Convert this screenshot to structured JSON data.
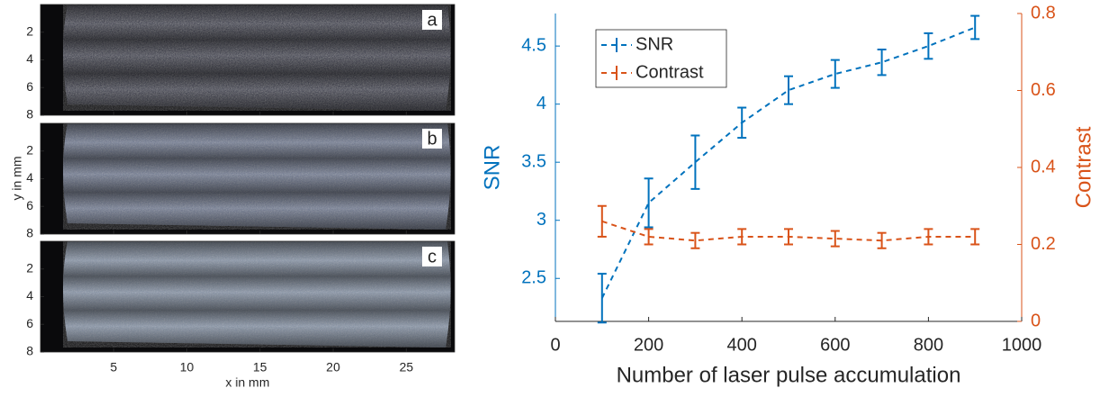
{
  "chart_data": [
    {
      "type": "image",
      "panels": [
        "a",
        "b",
        "c"
      ],
      "xlabel": "x in mm",
      "ylabel": "y in mm",
      "xlim": [
        0,
        28.3
      ],
      "xticks": [
        5,
        10,
        15,
        20,
        25
      ],
      "ylim": [
        0,
        8
      ],
      "yticks": [
        2,
        4,
        6,
        8
      ]
    },
    {
      "type": "line",
      "x": [
        100,
        200,
        300,
        400,
        500,
        600,
        700,
        800,
        900
      ],
      "xlim": [
        0,
        1000
      ],
      "xticks": [
        0,
        200,
        400,
        600,
        800,
        1000
      ],
      "ylim": [
        2.13,
        4.78
      ],
      "yticks": [
        2.5,
        3,
        3.5,
        4,
        4.5
      ],
      "y2lim": [
        0,
        0.8
      ],
      "y2ticks": [
        0,
        0.2,
        0.4,
        0.6,
        0.8
      ],
      "xlabel": "Number of laser pulse accumulation",
      "ylabel": "SNR",
      "y2label": "Contrast",
      "legend": "upper left",
      "series": [
        {
          "name": "SNR",
          "color": "#0072bd",
          "values": [
            2.33,
            3.15,
            3.5,
            3.84,
            4.12,
            4.26,
            4.36,
            4.5,
            4.66
          ],
          "errors": [
            0.21,
            0.21,
            0.23,
            0.13,
            0.12,
            0.12,
            0.11,
            0.11,
            0.1
          ]
        },
        {
          "name": "Contrast",
          "color": "#d95319",
          "axis": "y2",
          "values": [
            0.26,
            0.22,
            0.21,
            0.22,
            0.22,
            0.215,
            0.21,
            0.22,
            0.22
          ],
          "errors": [
            0.04,
            0.02,
            0.02,
            0.02,
            0.02,
            0.02,
            0.02,
            0.02,
            0.02
          ]
        }
      ]
    }
  ]
}
